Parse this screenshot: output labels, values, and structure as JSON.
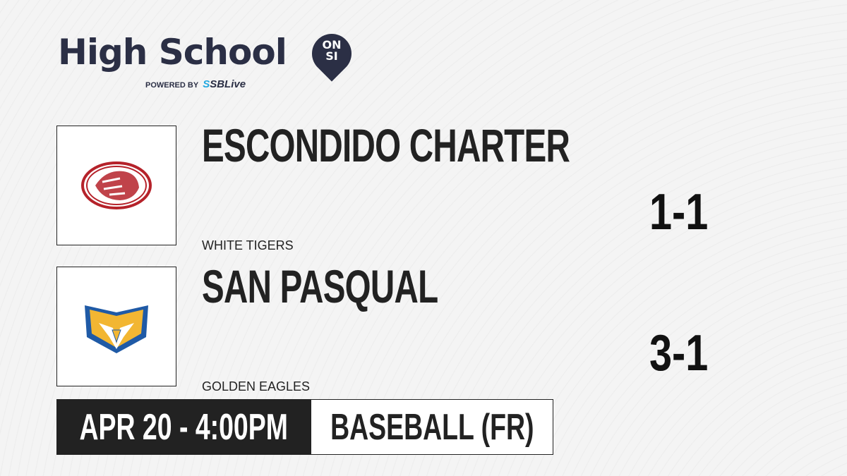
{
  "brand": {
    "title": "High School",
    "badge_line1": "ON",
    "badge_line2": "SI",
    "powered_by": "POWERED BY",
    "partner_prefix": "S",
    "partner": "SBLive"
  },
  "teams": [
    {
      "name": "ESCONDIDO CHARTER",
      "nickname": "WHITE TIGERS",
      "record": "1-1",
      "logo": "tiger-logo",
      "color": "#b5222a"
    },
    {
      "name": "SAN PASQUAL",
      "nickname": "GOLDEN EAGLES",
      "record": "3-1",
      "logo": "eagle-logo",
      "color": "#1f5aa6"
    }
  ],
  "game": {
    "datetime": "APR 20 - 4:00PM",
    "sport": "BASEBALL (FR)"
  }
}
